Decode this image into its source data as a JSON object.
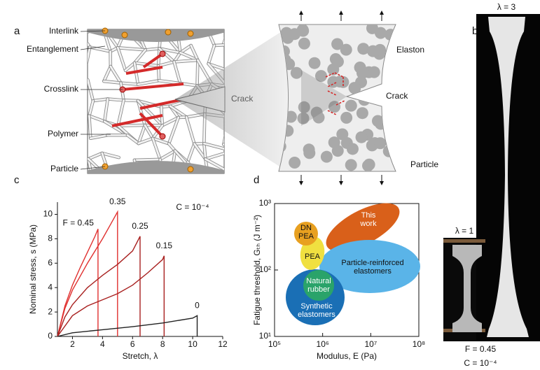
{
  "panel_labels": [
    "a",
    "b",
    "c",
    "d"
  ],
  "schematic_a": {
    "labels": [
      "Interlink",
      "Entanglement",
      "Crosslink",
      "Polymer",
      "Particle"
    ],
    "crack": "Crack"
  },
  "schematic_mid": {
    "labels": [
      "Elaston",
      "Crack",
      "Particle"
    ]
  },
  "photo_b": {
    "stretch_high": "λ = 3",
    "stretch_low": "λ = 1",
    "caption": [
      "F = 0.45",
      "C = 10⁻⁴"
    ]
  },
  "chart_data": [
    {
      "type": "line",
      "xlabel": "Stretch, λ",
      "ylabel": "Nominal stress, s (MPa)",
      "annotation": "C = 10⁻⁴",
      "xlim": [
        1,
        12
      ],
      "xticks": [
        2,
        4,
        6,
        8,
        10,
        12
      ],
      "ylim": [
        0,
        11
      ],
      "yticks": [
        0,
        2,
        4,
        6,
        8,
        10
      ],
      "series": [
        {
          "name": "F = 0.45",
          "color": "#e0302f",
          "x": [
            1,
            1.5,
            2,
            2.5,
            3,
            3.5,
            3.7,
            3.7
          ],
          "values": [
            0,
            2.5,
            4.2,
            5.6,
            6.9,
            8.2,
            8.8,
            0
          ]
        },
        {
          "name": "0.35",
          "color": "#e0302f",
          "x": [
            1,
            1.5,
            2,
            3,
            4,
            4.5,
            5,
            5
          ],
          "values": [
            0,
            2.3,
            3.8,
            6.0,
            8.0,
            9.1,
            10.2,
            0
          ]
        },
        {
          "name": "0.25",
          "color": "#a8201f",
          "x": [
            1,
            1.5,
            2,
            3,
            4,
            5,
            6,
            6.5,
            6.5
          ],
          "values": [
            0,
            1.6,
            2.6,
            4.0,
            5.0,
            5.9,
            7.0,
            8.2,
            0
          ]
        },
        {
          "name": "0.15",
          "color": "#a8201f",
          "x": [
            1,
            2,
            3,
            4,
            5,
            6,
            7,
            8,
            8.1,
            8.1
          ],
          "values": [
            0,
            1.7,
            2.5,
            3.0,
            3.5,
            4.2,
            5.2,
            6.3,
            6.6,
            0
          ]
        },
        {
          "name": "0",
          "color": "#222222",
          "x": [
            1,
            2,
            4,
            6,
            8,
            10,
            10.3,
            10.3
          ],
          "values": [
            0,
            0.3,
            0.55,
            0.8,
            1.1,
            1.5,
            1.7,
            0
          ]
        }
      ]
    },
    {
      "type": "region",
      "xlabel": "Modulus, E (Pa)",
      "ylabel": "Fatigue threshold, Gₜₕ (J m⁻²)",
      "log_scale": true,
      "xlim": [
        100000,
        100000000
      ],
      "xticks": [
        {
          "value": 100000,
          "label": "10⁵"
        },
        {
          "value": 1000000,
          "label": "10⁶"
        },
        {
          "value": 10000000,
          "label": "10⁷"
        },
        {
          "value": 100000000,
          "label": "10⁸"
        }
      ],
      "ylim": [
        10,
        1000
      ],
      "yticks": [
        {
          "value": 10,
          "label": "10¹"
        },
        {
          "value": 100,
          "label": "10²"
        },
        {
          "value": 1000,
          "label": "10³"
        }
      ],
      "regions": [
        {
          "label": [
            "This",
            "work"
          ],
          "color": "#d9601a"
        },
        {
          "label": [
            "Particle-reinforced",
            "elastomers"
          ],
          "color": "#5ab4e8"
        },
        {
          "label": [
            "Synthetic",
            "elastomers"
          ],
          "color": "#1a6fb5"
        },
        {
          "label": [
            "PEA"
          ],
          "color": "#f0e040"
        },
        {
          "label": [
            "DN",
            "PEA"
          ],
          "color": "#e8a020"
        },
        {
          "label": [
            "Natural",
            "rubber"
          ],
          "color": "#2aa36a"
        }
      ]
    }
  ]
}
